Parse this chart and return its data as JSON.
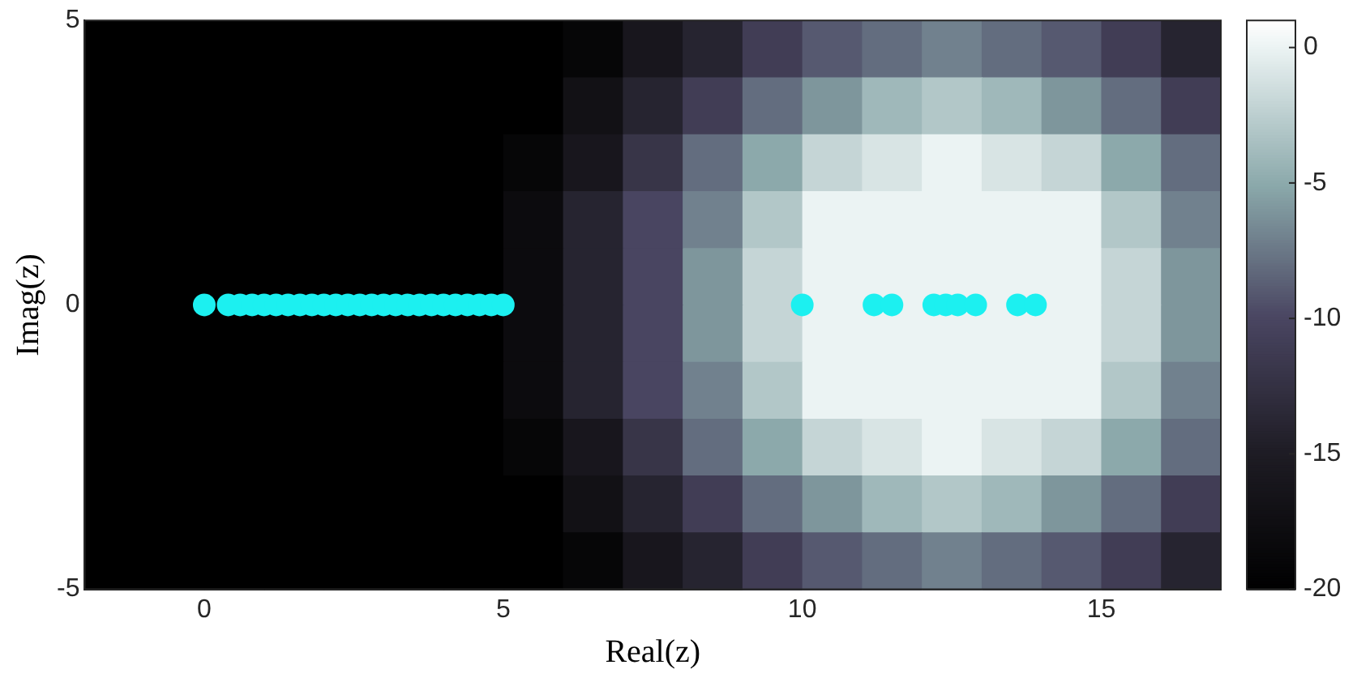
{
  "chart_data": {
    "type": "heatmap",
    "xlabel": "Real(z)",
    "ylabel": "Imag(z)",
    "x": [
      -1.5,
      -0.5,
      0.5,
      1.5,
      2.5,
      3.5,
      4.5,
      5.5,
      6.5,
      7.5,
      8.5,
      9.5,
      10.5,
      11.5,
      12.5,
      13.5,
      14.5,
      15.5,
      16.5
    ],
    "cells": [
      [
        -20,
        -20,
        -20,
        -20,
        -20,
        -20,
        -20,
        -20,
        -19,
        -16,
        -14,
        -11,
        -9,
        -8,
        -7,
        -8,
        -9,
        -11,
        -14
      ],
      [
        -20,
        -20,
        -20,
        -20,
        -20,
        -20,
        -20,
        -20,
        -17,
        -14,
        -11,
        -8,
        -6,
        -4,
        -3,
        -4,
        -6,
        -8,
        -11
      ],
      [
        -20,
        -20,
        -20,
        -20,
        -20,
        -20,
        -20,
        -19,
        -16,
        -12,
        -8,
        -5,
        -2,
        -1,
        0,
        -1,
        -2,
        -5,
        -8
      ],
      [
        -20,
        -20,
        -20,
        -20,
        -20,
        -20,
        -20,
        -18,
        -14,
        -10,
        -7,
        -3,
        0,
        0,
        0,
        0,
        0,
        -3,
        -7
      ],
      [
        -20,
        -20,
        -20,
        -20,
        -20,
        -20,
        -20,
        -18,
        -14,
        -10,
        -6,
        -2,
        0,
        0,
        0,
        0,
        0,
        -2,
        -6
      ],
      [
        -20,
        -20,
        -20,
        -20,
        -20,
        -20,
        -20,
        -18,
        -14,
        -10,
        -6,
        -2,
        0,
        0,
        0,
        0,
        0,
        -2,
        -6
      ],
      [
        -20,
        -20,
        -20,
        -20,
        -20,
        -20,
        -20,
        -18,
        -14,
        -10,
        -7,
        -3,
        0,
        0,
        0,
        0,
        0,
        -3,
        -7
      ],
      [
        -20,
        -20,
        -20,
        -20,
        -20,
        -20,
        -20,
        -19,
        -16,
        -12,
        -8,
        -5,
        -2,
        -1,
        0,
        -1,
        -2,
        -5,
        -8
      ],
      [
        -20,
        -20,
        -20,
        -20,
        -20,
        -20,
        -20,
        -20,
        -17,
        -14,
        -11,
        -8,
        -6,
        -4,
        -3,
        -4,
        -6,
        -8,
        -11
      ],
      [
        -20,
        -20,
        -20,
        -20,
        -20,
        -20,
        -20,
        -20,
        -19,
        -16,
        -14,
        -11,
        -9,
        -8,
        -7,
        -8,
        -9,
        -11,
        -14
      ]
    ],
    "clim": [
      -20,
      1
    ],
    "cticks": [
      -20,
      -15,
      -10,
      -5,
      0
    ],
    "xlim": [
      -2,
      17
    ],
    "xticks": [
      0,
      5,
      10,
      15
    ],
    "ylim": [
      -5,
      5
    ],
    "yticks": [
      -5,
      0,
      5
    ],
    "marker": "circle",
    "series": [
      {
        "type": "scatter",
        "color": "#1cf0f0",
        "x": [
          0,
          0.4,
          0.6,
          0.8,
          1.0,
          1.2,
          1.4,
          1.6,
          1.8,
          2.0,
          2.2,
          2.4,
          2.6,
          2.8,
          3.0,
          3.2,
          3.4,
          3.6,
          3.8,
          4.0,
          4.2,
          4.4,
          4.6,
          4.8,
          5.0,
          10,
          11.2,
          11.5,
          12.2,
          12.4,
          12.6,
          12.9,
          13.6,
          13.9
        ],
        "values": [
          0,
          0,
          0,
          0,
          0,
          0,
          0,
          0,
          0,
          0,
          0,
          0,
          0,
          0,
          0,
          0,
          0,
          0,
          0,
          0,
          0,
          0,
          0,
          0,
          0,
          0,
          0,
          0,
          0,
          0,
          0,
          0,
          0,
          0
        ]
      }
    ]
  }
}
